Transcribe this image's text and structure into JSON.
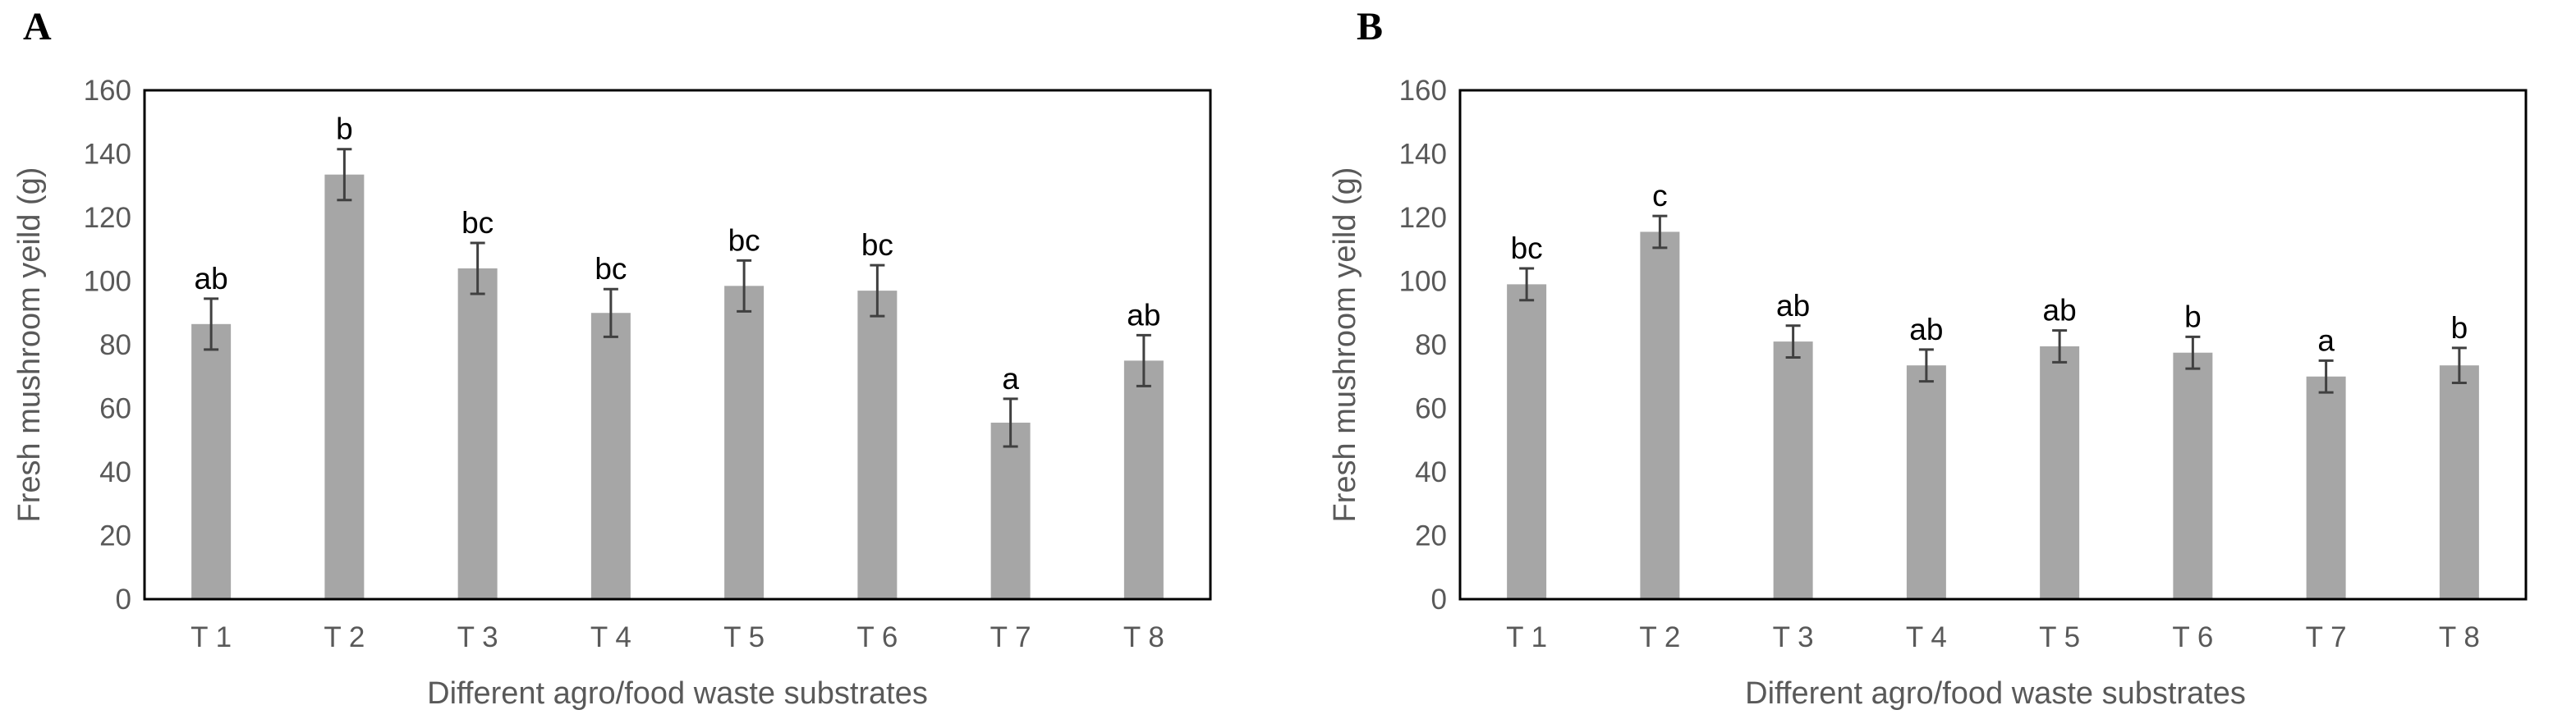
{
  "chart_data": [
    {
      "panel": "A",
      "type": "bar",
      "categories": [
        "T 1",
        "T 2",
        "T 3",
        "T 4",
        "T 5",
        "T 6",
        "T 7",
        "T 8"
      ],
      "values": [
        86.5,
        133.5,
        104,
        90,
        98.5,
        97,
        55.5,
        75
      ],
      "errors": [
        8,
        8,
        8,
        7.5,
        8,
        8,
        7.5,
        8
      ],
      "significance": [
        "ab",
        "b",
        "bc",
        "bc",
        "bc",
        "bc",
        "a",
        "ab"
      ],
      "xlabel": "Different agro/food waste substrates",
      "ylabel": "Fresh mushroom yeild (g)",
      "ylim": [
        0,
        160
      ],
      "yticks": [
        0,
        20,
        40,
        60,
        80,
        100,
        120,
        140,
        160
      ],
      "colors": {
        "bar": "#a6a6a6",
        "error": "#404040"
      }
    },
    {
      "panel": "B",
      "type": "bar",
      "categories": [
        "T 1",
        "T 2",
        "T 3",
        "T 4",
        "T 5",
        "T 6",
        "T 7",
        "T 8"
      ],
      "values": [
        99,
        115.5,
        81,
        73.5,
        79.5,
        77.5,
        70,
        73.5
      ],
      "errors": [
        5,
        5,
        5,
        5,
        5,
        5,
        5,
        5.5
      ],
      "significance": [
        "bc",
        "c",
        "ab",
        "ab",
        "ab",
        "b",
        "a",
        "b"
      ],
      "xlabel": "Different agro/food waste substrates",
      "ylabel": "Fresh mushroom yeild (g)",
      "ylim": [
        0,
        160
      ],
      "yticks": [
        0,
        20,
        40,
        60,
        80,
        100,
        120,
        140,
        160
      ],
      "colors": {
        "bar": "#a6a6a6",
        "error": "#404040"
      }
    }
  ]
}
